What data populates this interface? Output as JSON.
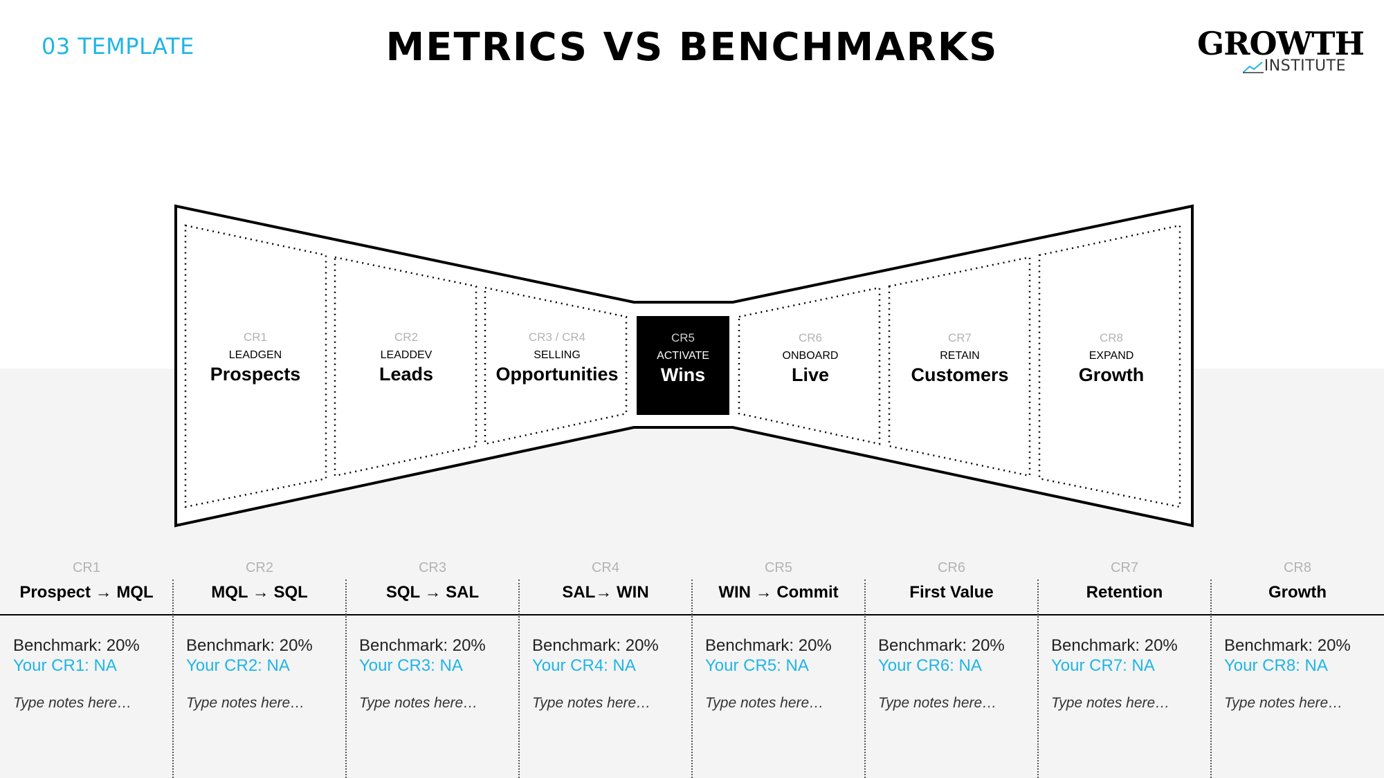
{
  "header": {
    "template_label": "03 TEMPLATE",
    "title": "METRICS VS BENCHMARKS",
    "logo_main": "GROWTH",
    "logo_sub": "INSTITUTE"
  },
  "stages": [
    {
      "cr": "CR1",
      "small": "LEADGEN",
      "big": "Prospects"
    },
    {
      "cr": "CR2",
      "small": "LEADDEV",
      "big": "Leads"
    },
    {
      "cr": "CR3 / CR4",
      "small": "SELLING",
      "big": "Opportunities"
    },
    {
      "cr": "CR5",
      "small": "ACTIVATE",
      "big": "Wins"
    },
    {
      "cr": "CR6",
      "small": "ONBOARD",
      "big": "Live"
    },
    {
      "cr": "CR7",
      "small": "RETAIN",
      "big": "Customers"
    },
    {
      "cr": "CR8",
      "small": "EXPAND",
      "big": "Growth"
    }
  ],
  "columns": [
    {
      "cr": "CR1",
      "title": "Prospect → MQL",
      "benchmark": "Benchmark: 20%",
      "your": "Your CR1: NA",
      "notes": "Type notes here…"
    },
    {
      "cr": "CR2",
      "title": "MQL → SQL",
      "benchmark": "Benchmark: 20%",
      "your": "Your CR2: NA",
      "notes": "Type notes here…"
    },
    {
      "cr": "CR3",
      "title": "SQL → SAL",
      "benchmark": "Benchmark: 20%",
      "your": "Your CR3: NA",
      "notes": "Type notes here…"
    },
    {
      "cr": "CR4",
      "title": "SAL→ WIN",
      "benchmark": "Benchmark: 20%",
      "your": "Your CR4: NA",
      "notes": "Type notes here…"
    },
    {
      "cr": "CR5",
      "title": "WIN → Commit",
      "benchmark": "Benchmark: 20%",
      "your": "Your CR5: NA",
      "notes": "Type notes here…"
    },
    {
      "cr": "CR6",
      "title": "First Value",
      "benchmark": "Benchmark: 20%",
      "your": "Your CR6: NA",
      "notes": "Type notes here…"
    },
    {
      "cr": "CR7",
      "title": "Retention",
      "benchmark": "Benchmark: 20%",
      "your": "Your CR7: NA",
      "notes": "Type notes here…"
    },
    {
      "cr": "CR8",
      "title": "Growth",
      "benchmark": "Benchmark: 20%",
      "your": "Your CR8: NA",
      "notes": "Type notes here…"
    }
  ],
  "colors": {
    "accent": "#1fb5e6",
    "muted": "#b3b3b3",
    "band": "#f4f4f4",
    "highlight": "#000000"
  }
}
